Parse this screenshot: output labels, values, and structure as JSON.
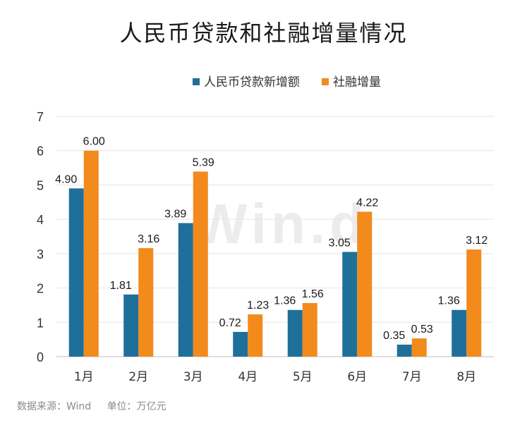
{
  "chart_data": {
    "type": "bar",
    "title": "人民币贷款和社融增量情况",
    "categories": [
      "1月",
      "2月",
      "3月",
      "4月",
      "5月",
      "6月",
      "7月",
      "8月"
    ],
    "series": [
      {
        "name": "人民币贷款新增额",
        "color": "#1f6f9b",
        "values": [
          4.9,
          1.81,
          3.89,
          0.72,
          1.36,
          3.05,
          0.35,
          1.36
        ]
      },
      {
        "name": "社融增量",
        "color": "#f28a1c",
        "values": [
          6.0,
          3.16,
          5.39,
          1.23,
          1.56,
          4.22,
          0.53,
          3.12
        ]
      }
    ],
    "ylim": [
      0,
      7
    ],
    "yticks": [
      0,
      1,
      2,
      3,
      4,
      5,
      6,
      7
    ],
    "grid": true,
    "legend": "top-center"
  },
  "watermark": "Win.d",
  "footer": {
    "source": "数据来源：Wind",
    "unit": "单位：万亿元"
  }
}
